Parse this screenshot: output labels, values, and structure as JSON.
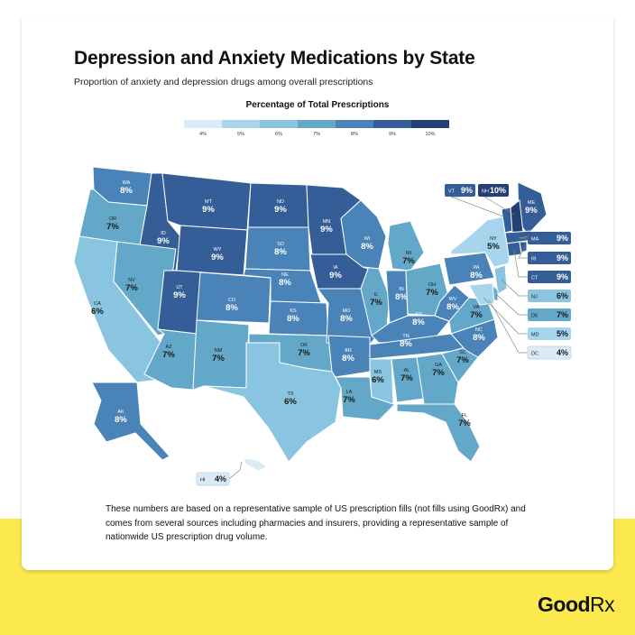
{
  "brand": "GoodRx",
  "title": "Depression and Anxiety Medications by State",
  "subtitle": "Proportion of anxiety and depression drugs among overall prescriptions",
  "footnote": "These numbers are based on a representative sample of US prescription fills (not fills using GoodRx) and comes from several sources including pharmacies and insurers, providing a representative sample of nationwide US prescription drug volume.",
  "colors": {
    "background_band": "#fbe94e",
    "scale": {
      "4": "#d9ebf7",
      "5": "#a6d5ed",
      "6": "#89c4e0",
      "7": "#64a8c9",
      "8": "#4983b8",
      "9": "#355d97",
      "10": "#243f73"
    }
  },
  "chart_data": {
    "type": "choropleth",
    "legend": {
      "title": "Percentage of Total Prescriptions",
      "ticks": [
        "4%",
        "5%",
        "6%",
        "7%",
        "8%",
        "9%",
        "10%"
      ],
      "placement": "top"
    },
    "unit": "%",
    "states": [
      {
        "abbr": "WA",
        "value": 8
      },
      {
        "abbr": "OR",
        "value": 7
      },
      {
        "abbr": "CA",
        "value": 6
      },
      {
        "abbr": "ID",
        "value": 9
      },
      {
        "abbr": "NV",
        "value": 7
      },
      {
        "abbr": "MT",
        "value": 9
      },
      {
        "abbr": "WY",
        "value": 9
      },
      {
        "abbr": "UT",
        "value": 9
      },
      {
        "abbr": "AZ",
        "value": 7
      },
      {
        "abbr": "CO",
        "value": 8
      },
      {
        "abbr": "NM",
        "value": 7
      },
      {
        "abbr": "ND",
        "value": 9
      },
      {
        "abbr": "SD",
        "value": 8
      },
      {
        "abbr": "NE",
        "value": 8
      },
      {
        "abbr": "KS",
        "value": 8
      },
      {
        "abbr": "OK",
        "value": 7
      },
      {
        "abbr": "TX",
        "value": 6
      },
      {
        "abbr": "MN",
        "value": 9
      },
      {
        "abbr": "IA",
        "value": 9
      },
      {
        "abbr": "MO",
        "value": 8
      },
      {
        "abbr": "AR",
        "value": 8
      },
      {
        "abbr": "LA",
        "value": 7
      },
      {
        "abbr": "WI",
        "value": 8
      },
      {
        "abbr": "IL",
        "value": 7
      },
      {
        "abbr": "MI",
        "value": 7
      },
      {
        "abbr": "IN",
        "value": 8
      },
      {
        "abbr": "OH",
        "value": 7
      },
      {
        "abbr": "KY",
        "value": 8
      },
      {
        "abbr": "TN",
        "value": 8
      },
      {
        "abbr": "MS",
        "value": 6
      },
      {
        "abbr": "AL",
        "value": 7
      },
      {
        "abbr": "GA",
        "value": 7
      },
      {
        "abbr": "FL",
        "value": 7
      },
      {
        "abbr": "SC",
        "value": 7
      },
      {
        "abbr": "NC",
        "value": 8
      },
      {
        "abbr": "VA",
        "value": 7
      },
      {
        "abbr": "WV",
        "value": 8
      },
      {
        "abbr": "PA",
        "value": 8
      },
      {
        "abbr": "NY",
        "value": 5
      },
      {
        "abbr": "ME",
        "value": 9
      },
      {
        "abbr": "AK",
        "value": 8
      },
      {
        "abbr": "HI",
        "value": 4
      },
      {
        "abbr": "VT",
        "value": 9
      },
      {
        "abbr": "NH",
        "value": 10
      },
      {
        "abbr": "MA",
        "value": 9
      },
      {
        "abbr": "RI",
        "value": 9
      },
      {
        "abbr": "CT",
        "value": 9
      },
      {
        "abbr": "NJ",
        "value": 6
      },
      {
        "abbr": "DE",
        "value": 7
      },
      {
        "abbr": "MD",
        "value": 5
      },
      {
        "abbr": "DC",
        "value": 4
      }
    ]
  }
}
